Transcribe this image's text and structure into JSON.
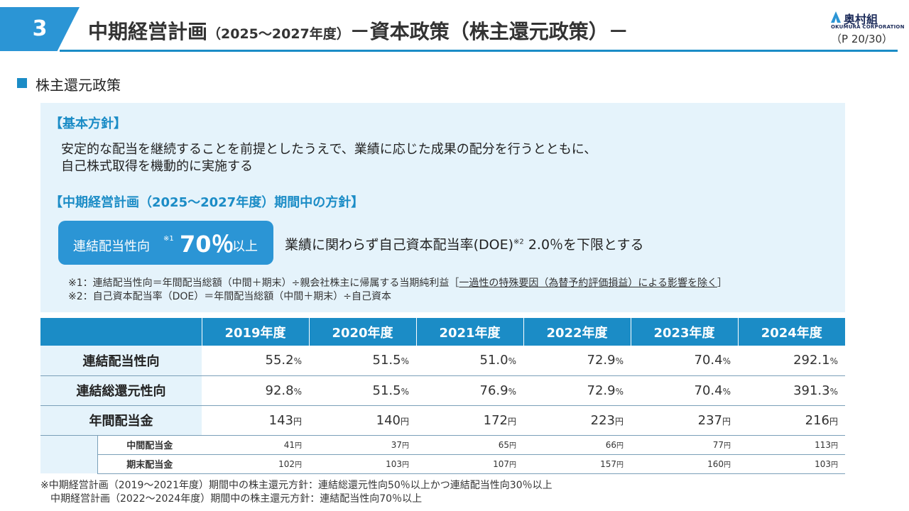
{
  "header": {
    "section_number": "3",
    "title_main": "中期経営計画",
    "title_period": "（2025～2027年度）",
    "title_sub": "－資本政策（株主還元政策）－",
    "logo_text": "奥村組",
    "logo_sub": "OKUMURA CORPORATION",
    "page": "（P 20/30）",
    "accent_color": "#1b8cc6"
  },
  "section": {
    "title": "株主還元政策"
  },
  "policy": {
    "basic_heading": "【基本方針】",
    "basic_line1": "安定的な配当を継続することを前提としたうえで、業績に応じた成果の配分を行うとともに、",
    "basic_line2": "自己株式取得を機動的に実施する",
    "plan_heading": "【中期経営計画（2025～2027年度）期間中の方針】",
    "payout_label": "連結配当性向",
    "payout_mark": "※1",
    "payout_value": "70％",
    "payout_suffix": "以上",
    "doe_text_a": "業績に関わらず自己資本配当率(DOE)",
    "doe_mark": "※2",
    "doe_text_b": " 2.0％を下限とする",
    "note1_a": "※1：連結配当性向＝年間配当総額（中間＋期末）÷親会社株主に帰属する当期純利益［",
    "note1_b": "一過性の特殊要因（為替予約評価損益）による影響を除く",
    "note1_c": "］",
    "note2": "※2：自己資本配当率（DOE）＝年間配当総額（中間＋期末）÷自己資本"
  },
  "table": {
    "years": [
      "2019年度",
      "2020年度",
      "2021年度",
      "2022年度",
      "2023年度",
      "2024年度"
    ],
    "rows": [
      {
        "label": "連結配当性向",
        "values": [
          "55.2",
          "51.5",
          "51.0",
          "72.9",
          "70.4",
          "292.1"
        ],
        "unit": "%"
      },
      {
        "label": "連結総還元性向",
        "values": [
          "92.8",
          "51.5",
          "76.9",
          "72.9",
          "70.4",
          "391.3"
        ],
        "unit": "%"
      },
      {
        "label": "年間配当金",
        "values": [
          "143",
          "140",
          "172",
          "223",
          "237",
          "216"
        ],
        "unit": "円"
      }
    ],
    "subrows": [
      {
        "label": "中間配当金",
        "values": [
          "41",
          "37",
          "65",
          "66",
          "77",
          "113"
        ],
        "unit": "円"
      },
      {
        "label": "期末配当金",
        "values": [
          "102",
          "103",
          "107",
          "157",
          "160",
          "103"
        ],
        "unit": "円"
      }
    ]
  },
  "footnotes": {
    "line1": "※中期経営計画（2019～2021年度）期間中の株主還元方針：連結総還元性向50％以上かつ連結配当性向30％以上",
    "line2": "中期経営計画（2022～2024年度）期間中の株主還元方針：連結配当性向70％以上"
  }
}
